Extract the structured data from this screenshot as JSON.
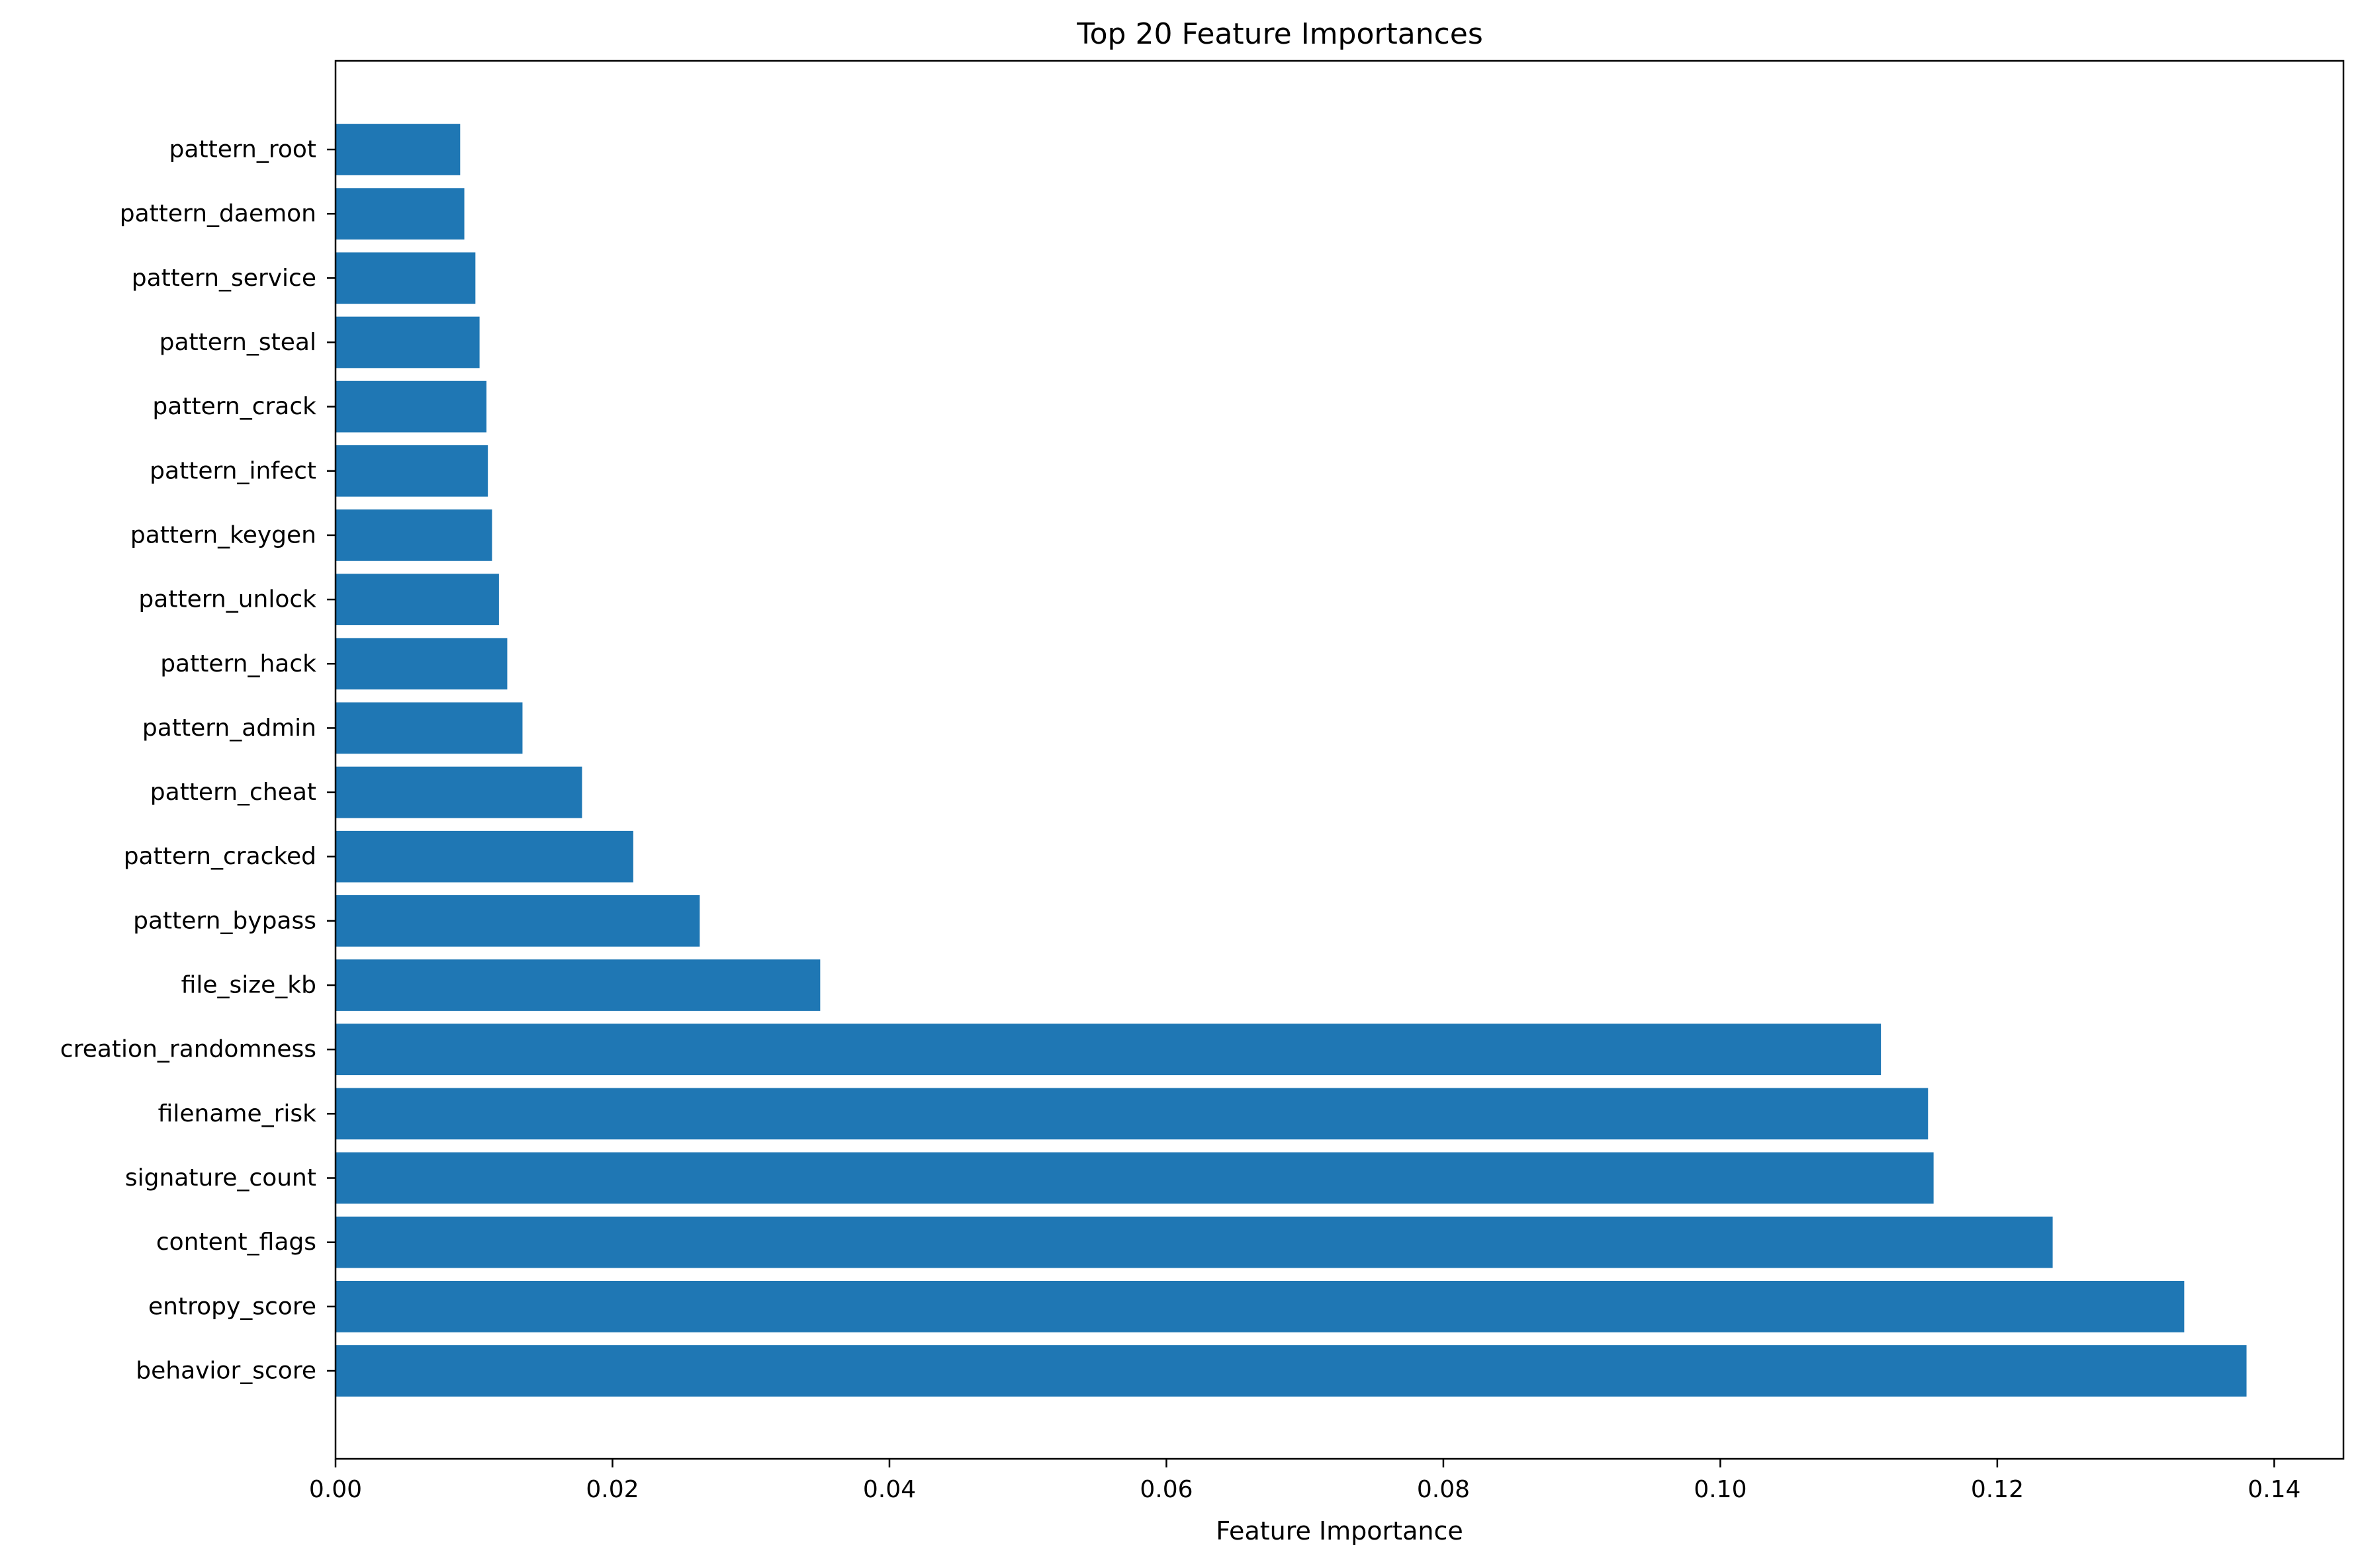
{
  "chart_data": {
    "type": "bar",
    "orientation": "horizontal",
    "title": "Top 20 Feature Importances",
    "xlabel": "Feature Importance",
    "ylabel": "",
    "xlim": [
      0,
      0.145
    ],
    "xticks": [
      0.0,
      0.02,
      0.04,
      0.06,
      0.08,
      0.1,
      0.12,
      0.14
    ],
    "xtick_labels": [
      "0.00",
      "0.02",
      "0.04",
      "0.06",
      "0.08",
      "0.10",
      "0.12",
      "0.14"
    ],
    "grid": false,
    "legend": "none",
    "bar_color": "#1f77b4",
    "categories": [
      "behavior_score",
      "entropy_score",
      "content_flags",
      "signature_count",
      "filename_risk",
      "creation_randomness",
      "file_size_kb",
      "pattern_bypass",
      "pattern_cracked",
      "pattern_cheat",
      "pattern_admin",
      "pattern_hack",
      "pattern_unlock",
      "pattern_keygen",
      "pattern_infect",
      "pattern_crack",
      "pattern_steal",
      "pattern_service",
      "pattern_daemon",
      "pattern_root"
    ],
    "values": [
      0.138,
      0.1335,
      0.124,
      0.1154,
      0.115,
      0.1116,
      0.035,
      0.0263,
      0.0215,
      0.0178,
      0.0135,
      0.0124,
      0.0118,
      0.0113,
      0.011,
      0.0109,
      0.0104,
      0.0101,
      0.0093,
      0.009
    ]
  }
}
